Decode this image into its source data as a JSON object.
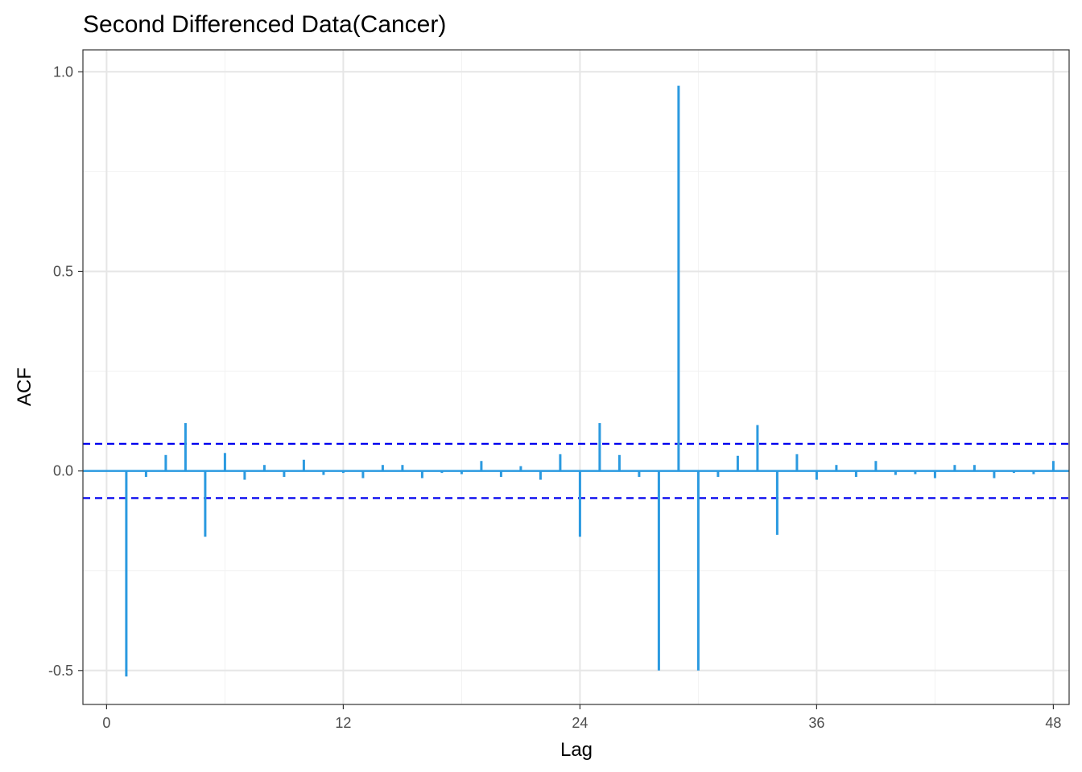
{
  "chart_data": {
    "type": "bar",
    "title": "Second Differenced Data(Cancer)",
    "xlabel": "Lag",
    "ylabel": "ACF",
    "xlim": [
      -1.2,
      48.8
    ],
    "ylim": [
      -0.585,
      1.055
    ],
    "x_ticks": [
      0,
      12,
      24,
      36,
      48
    ],
    "x_tick_labels": [
      "0",
      "12",
      "24",
      "36",
      "48"
    ],
    "y_ticks": [
      -0.5,
      0.0,
      0.5,
      1.0
    ],
    "y_tick_labels": [
      "-0.5",
      "0.0",
      "0.5",
      "1.0"
    ],
    "grid": true,
    "confidence_bounds": [
      0.068,
      -0.068
    ],
    "lags": [
      1,
      2,
      3,
      4,
      5,
      6,
      7,
      8,
      9,
      10,
      11,
      12,
      13,
      14,
      15,
      16,
      17,
      18,
      19,
      20,
      21,
      22,
      23,
      24,
      25,
      26,
      27,
      28,
      29,
      30,
      31,
      32,
      33,
      34,
      35,
      36,
      37,
      38,
      39,
      40,
      41,
      42,
      43,
      44,
      45,
      46,
      47,
      48
    ],
    "values": [
      -0.515,
      -0.015,
      0.04,
      0.12,
      -0.165,
      0.045,
      -0.022,
      0.015,
      -0.015,
      0.028,
      -0.01,
      -0.005,
      -0.018,
      0.015,
      0.015,
      -0.018,
      -0.005,
      -0.008,
      0.025,
      -0.015,
      0.012,
      -0.022,
      0.042,
      -0.165,
      0.12,
      0.04,
      -0.015,
      -0.5,
      0.965,
      -0.5,
      -0.015,
      0.038,
      0.115,
      -0.16,
      0.042,
      -0.022,
      0.015,
      -0.015,
      0.025,
      -0.01,
      -0.008,
      -0.018,
      0.015,
      0.015,
      -0.018,
      -0.005,
      -0.008,
      0.025
    ]
  },
  "colors": {
    "bars": "#2b9ae0",
    "zero_line": "#2b9ae0",
    "bounds": "#0000ee",
    "grid_major": "#e6e6e6",
    "grid_minor": "#f2f2f2",
    "panel_border": "#333333"
  }
}
